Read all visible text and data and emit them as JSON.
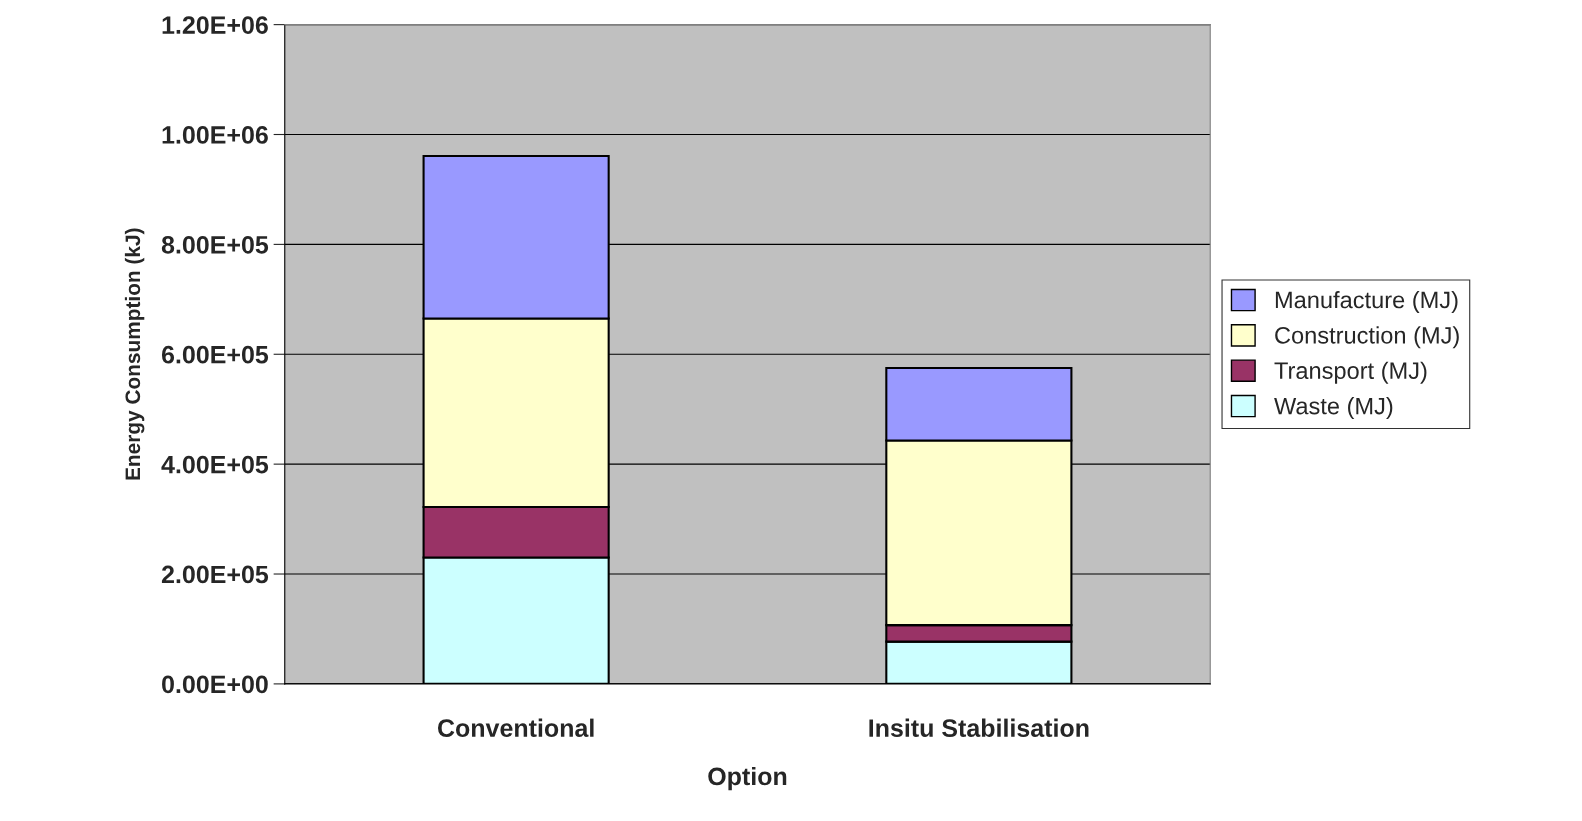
{
  "chart_data": {
    "type": "bar",
    "stacked": true,
    "xlabel": "Option",
    "ylabel": "Energy Consumption (kJ)",
    "categories": [
      "Conventional",
      "Insitu Stabilisation"
    ],
    "series": [
      {
        "name": "Waste (MJ)",
        "color": "#ccffff",
        "values": [
          230000,
          77000
        ]
      },
      {
        "name": "Transport (MJ)",
        "color": "#993366",
        "values": [
          92000,
          30000
        ]
      },
      {
        "name": "Construction (MJ)",
        "color": "#ffffcc",
        "values": [
          343000,
          336000
        ]
      },
      {
        "name": "Manufacture (MJ)",
        "color": "#9999ff",
        "values": [
          296000,
          132000
        ]
      }
    ],
    "ylim": [
      0,
      1200000
    ],
    "yticks": [
      {
        "value": 0,
        "label": "0.00E+00"
      },
      {
        "value": 200000,
        "label": "2.00E+05"
      },
      {
        "value": 400000,
        "label": "4.00E+05"
      },
      {
        "value": 600000,
        "label": "6.00E+05"
      },
      {
        "value": 800000,
        "label": "8.00E+05"
      },
      {
        "value": 1000000,
        "label": "1.00E+06"
      },
      {
        "value": 1200000,
        "label": "1.20E+06"
      }
    ],
    "grid": "y",
    "legend": "right"
  }
}
